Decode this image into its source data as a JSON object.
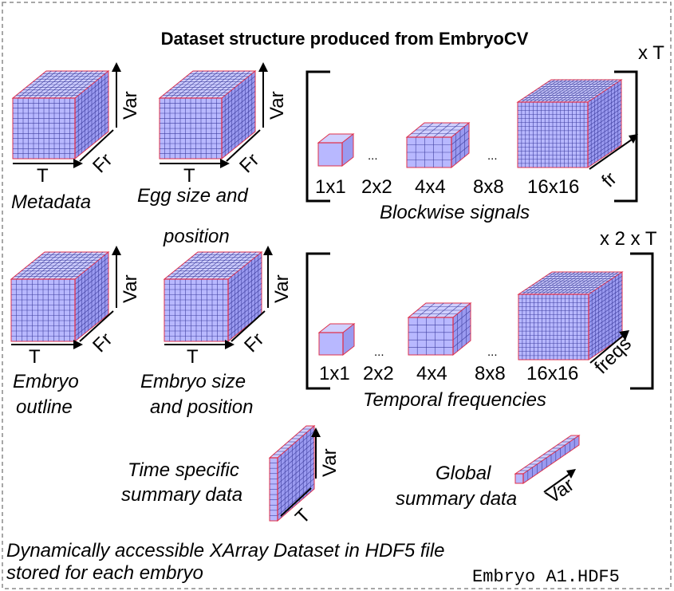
{
  "title": "Dataset structure produced from EmbryoCV",
  "colors": {
    "face": "#b8b8ff",
    "top": "#d0d0ff",
    "side": "#9a9af0",
    "grid": "#4040a0",
    "edge": "#e0304a"
  },
  "cubes": [
    {
      "axes": {
        "x": "T",
        "y": "Var",
        "z": "Fr"
      },
      "label_lines": [
        "Metadata"
      ]
    },
    {
      "axes": {
        "x": "T",
        "y": "Var",
        "z": "Fr"
      },
      "label_lines": [
        "Egg size and",
        "position"
      ]
    },
    {
      "axes": {
        "x": "T",
        "y": "Var",
        "z": "Fr"
      },
      "label_lines": [
        "Embryo",
        "outline"
      ]
    },
    {
      "axes": {
        "x": "T",
        "y": "Var",
        "z": "Fr"
      },
      "label_lines": [
        "Embryo size",
        "and position"
      ]
    }
  ],
  "blockwise": {
    "sizes": [
      "1x1",
      "2x2",
      "4x4",
      "8x8",
      "16x16"
    ],
    "ellipsis": "...",
    "axis": "fr",
    "label": "Blockwise signals",
    "multiplier": "x T"
  },
  "temporal": {
    "sizes": [
      "1x1",
      "2x2",
      "4x4",
      "8x8",
      "16x16"
    ],
    "ellipsis": "...",
    "axis": "freqs",
    "label": "Temporal frequencies",
    "multiplier": "x 2 x T"
  },
  "time_specific": {
    "label_lines": [
      "Time specific",
      "summary data"
    ],
    "axes": {
      "y": "Var",
      "z": "T"
    }
  },
  "global": {
    "label_lines": [
      "Global",
      "summary data"
    ],
    "axis": "Var"
  },
  "footer": {
    "lines": [
      "Dynamically accessible XArray Dataset in HDF5 file",
      "stored for each embryo"
    ],
    "filename": "Embryo A1.HDF5"
  }
}
